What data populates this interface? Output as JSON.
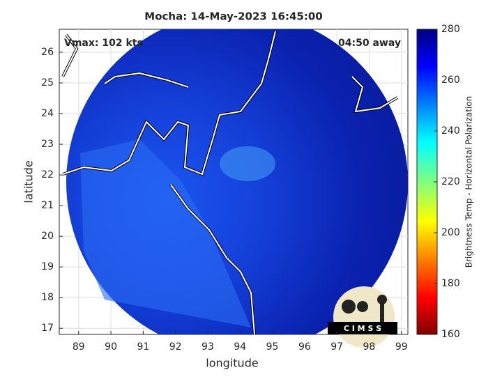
{
  "map": {
    "title": "Mocha: 14-May-2023 16:45:00",
    "annotations": {
      "left": "Vmax: 102 kts",
      "right": "04:50 away"
    },
    "xlabel": "longitude",
    "ylabel": "latitude",
    "xlim": [
      88.4,
      99.2
    ],
    "ylim": [
      16.8,
      26.75
    ],
    "xticks": [
      89,
      90,
      91,
      92,
      93,
      94,
      95,
      96,
      97,
      98,
      99
    ],
    "yticks": [
      17,
      18,
      19,
      20,
      21,
      22,
      23,
      24,
      25,
      26
    ],
    "grid": true,
    "logo_text": "C I M S S"
  },
  "colorbar": {
    "label": "Brightness Temp - Horizontal Polarization",
    "lim": [
      160,
      280
    ],
    "ticks": [
      160,
      180,
      200,
      220,
      240,
      260,
      280
    ]
  }
}
